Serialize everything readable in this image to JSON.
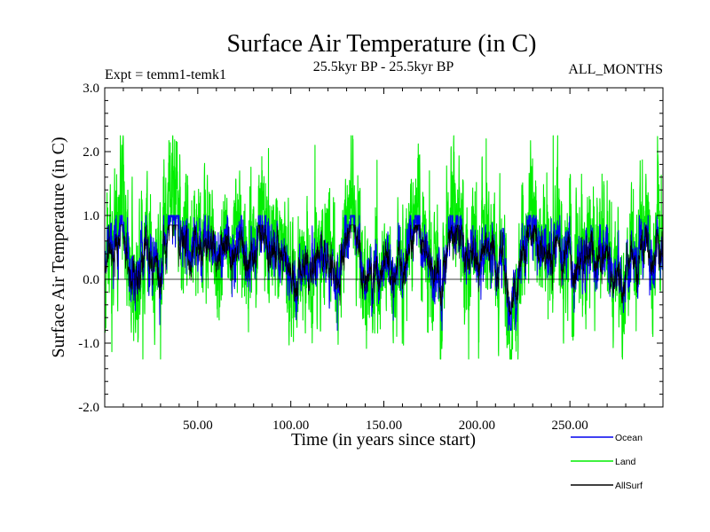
{
  "chart_data": {
    "type": "line",
    "title": "Surface Air Temperature (in C)",
    "subtitle_left": "Expt = temm1-temk1",
    "subtitle_center": "25.5kyr BP - 25.5kyr BP",
    "subtitle_right": "ALL_MONTHS",
    "xlabel": "Time (in years since start)",
    "ylabel": "Surface Air Temperature (in C)",
    "xlim": [
      0,
      300
    ],
    "ylim": [
      -2.0,
      3.0
    ],
    "xticks": [
      50,
      100,
      150,
      200,
      250
    ],
    "xtick_labels": [
      "50.00",
      "100.00",
      "150.00",
      "200.00",
      "250.00"
    ],
    "yticks": [
      -2.0,
      -1.0,
      0.0,
      1.0,
      2.0,
      3.0
    ],
    "ytick_labels": [
      "-2.0",
      "-1.0",
      "0.0",
      "1.0",
      "2.0",
      "3.0"
    ],
    "zero_line": 0.0,
    "legend_position": "bottom-right",
    "series": [
      {
        "name": "Land",
        "color": "#00ee00",
        "samples_per_year": 12,
        "mean": 0.3,
        "min": -1.25,
        "max": 2.25,
        "notable_points": [
          {
            "x": 30,
            "y": -1.25
          },
          {
            "x": 88,
            "y": 2.05
          },
          {
            "x": 113,
            "y": 2.1
          },
          {
            "x": 205,
            "y": 2.2
          },
          {
            "x": 241,
            "y": 2.25
          },
          {
            "x": 278,
            "y": -0.95
          }
        ]
      },
      {
        "name": "Ocean",
        "color": "#0000ee",
        "samples_per_year": 12,
        "mean": 0.25,
        "min": -0.8,
        "max": 1.0,
        "notable_points": [
          {
            "x": 88,
            "y": 0.95
          },
          {
            "x": 125,
            "y": -0.8
          },
          {
            "x": 240,
            "y": 0.95
          }
        ]
      },
      {
        "name": "AllSurf",
        "color": "#000000",
        "samples_per_year": 12,
        "mean": 0.25,
        "min": -0.6,
        "max": 0.85,
        "notable_points": []
      }
    ],
    "legend": [
      {
        "label": "Ocean",
        "color": "#0000ee"
      },
      {
        "label": "Land",
        "color": "#00ee00"
      },
      {
        "label": "AllSurf",
        "color": "#000000"
      }
    ]
  }
}
